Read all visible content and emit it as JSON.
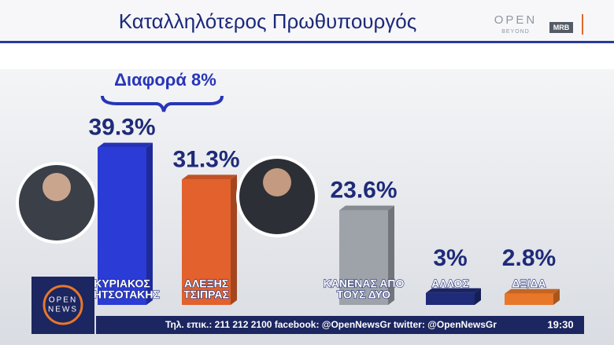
{
  "chart_data": {
    "type": "bar",
    "title": "Καταλληλότερος Πρωθυπουργός",
    "annotation": "Διαφορά 8%",
    "categories": [
      [
        "ΚΥΡΙΑΚΟΣ",
        "ΜΗΤΣΟΤΑΚΗΣ"
      ],
      [
        "ΑΛΕΞΗΣ",
        "ΤΣΙΠΡΑΣ"
      ],
      [
        "ΚΑΝΕΝΑΣ ΑΠΟ",
        "ΤΟΥΣ ΔΥΟ"
      ],
      [
        "ΑΛΛΟΣ"
      ],
      [
        "ΔΞ/ΔΑ"
      ]
    ],
    "values": [
      39.3,
      31.3,
      23.6,
      3,
      2.8
    ],
    "value_labels": [
      "39.3%",
      "31.3%",
      "23.6%",
      "3%",
      "2.8%"
    ],
    "colors": [
      "#2b3bd6",
      "#e2612c",
      "#9ea3aa",
      "#1f2a78",
      "#e8772a"
    ]
  },
  "branding": {
    "channel": "OPEN",
    "channel_sub": "BEYOND",
    "pollster": "MRB",
    "logo_top": "OPEN",
    "logo_bottom": "NEWS"
  },
  "ticker": {
    "text": "Τηλ. επικ.: 211 212 2100 facebook: @OpenNewsGr twitter: @OpenNewsGr",
    "time": "19:30"
  }
}
